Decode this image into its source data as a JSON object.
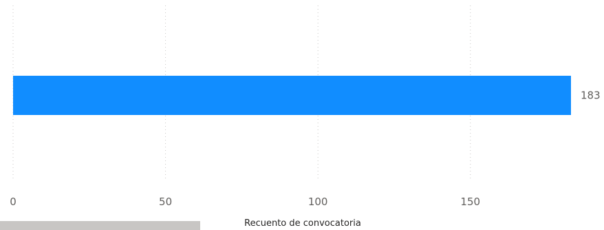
{
  "chart_data": {
    "type": "bar",
    "orientation": "horizontal",
    "categories": [
      ""
    ],
    "values": [
      183
    ],
    "data_labels": [
      "183"
    ],
    "xlabel": "Recuento de convocatoria",
    "ylabel": "",
    "xlim": [
      0,
      183
    ],
    "x_ticks": [
      0,
      50,
      100,
      150
    ],
    "x_tick_labels": [
      "0",
      "50",
      "100",
      "150"
    ],
    "grid": "vertical-dotted",
    "bar_color": "#118dff"
  },
  "colors": {
    "bar": "#118dff",
    "gridline": "#c8c6c4",
    "tick_label": "#605e5c",
    "axis_title": "#252423",
    "scrollbar": "#c8c6c4"
  }
}
